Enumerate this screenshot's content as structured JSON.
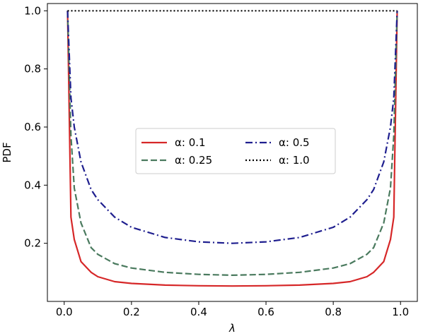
{
  "chart_data": {
    "type": "line",
    "xlabel": "λ",
    "ylabel": "PDF",
    "xlim": [
      -0.05,
      1.05
    ],
    "ylim": [
      0.0,
      1.025
    ],
    "x_ticks": [
      0.0,
      0.2,
      0.4,
      0.6,
      0.8,
      1.0
    ],
    "x_tick_labels": [
      "0.0",
      "0.2",
      "0.4",
      "0.6",
      "0.8",
      "1.0"
    ],
    "y_ticks": [
      0.2,
      0.4,
      0.6,
      0.8,
      1.0
    ],
    "y_tick_labels": [
      "0.2",
      "0.4",
      "0.6",
      "0.8",
      "1.0"
    ],
    "grid": false,
    "legend": {
      "placement": "center",
      "columns": 2
    },
    "series": [
      {
        "name": "α: 0.1",
        "color": "#d62728",
        "style": "solid",
        "x": [
          0.01,
          0.02,
          0.03,
          0.05,
          0.08,
          0.1,
          0.15,
          0.2,
          0.3,
          0.4,
          0.5,
          0.6,
          0.7,
          0.8,
          0.85,
          0.9,
          0.92,
          0.95,
          0.97,
          0.98,
          0.99
        ],
        "y": [
          1.0,
          0.29,
          0.213,
          0.137,
          0.1,
          0.085,
          0.068,
          0.062,
          0.056,
          0.054,
          0.053,
          0.054,
          0.056,
          0.062,
          0.068,
          0.085,
          0.1,
          0.137,
          0.213,
          0.29,
          1.0
        ]
      },
      {
        "name": "α: 0.25",
        "color": "#4a7a5e",
        "style": "dashed",
        "x": [
          0.01,
          0.02,
          0.03,
          0.05,
          0.08,
          0.1,
          0.15,
          0.2,
          0.3,
          0.4,
          0.5,
          0.6,
          0.7,
          0.8,
          0.85,
          0.9,
          0.92,
          0.95,
          0.97,
          0.98,
          0.99
        ],
        "y": [
          1.0,
          0.57,
          0.39,
          0.27,
          0.185,
          0.162,
          0.13,
          0.115,
          0.1,
          0.093,
          0.09,
          0.093,
          0.1,
          0.115,
          0.13,
          0.162,
          0.185,
          0.27,
          0.39,
          0.57,
          1.0
        ]
      },
      {
        "name": "α: 0.5",
        "color": "#1f1f8f",
        "style": "dashdot",
        "x": [
          0.01,
          0.02,
          0.03,
          0.05,
          0.08,
          0.1,
          0.15,
          0.2,
          0.3,
          0.4,
          0.5,
          0.6,
          0.7,
          0.8,
          0.85,
          0.9,
          0.92,
          0.95,
          0.97,
          0.98,
          0.99
        ],
        "y": [
          1.0,
          0.7,
          0.6,
          0.48,
          0.385,
          0.35,
          0.29,
          0.255,
          0.22,
          0.205,
          0.2,
          0.205,
          0.22,
          0.255,
          0.29,
          0.35,
          0.385,
          0.48,
          0.6,
          0.7,
          1.0
        ]
      },
      {
        "name": "α: 1.0",
        "color": "#000000",
        "style": "dotted",
        "x": [
          0.01,
          0.99
        ],
        "y": [
          1.0,
          1.0
        ]
      }
    ]
  }
}
